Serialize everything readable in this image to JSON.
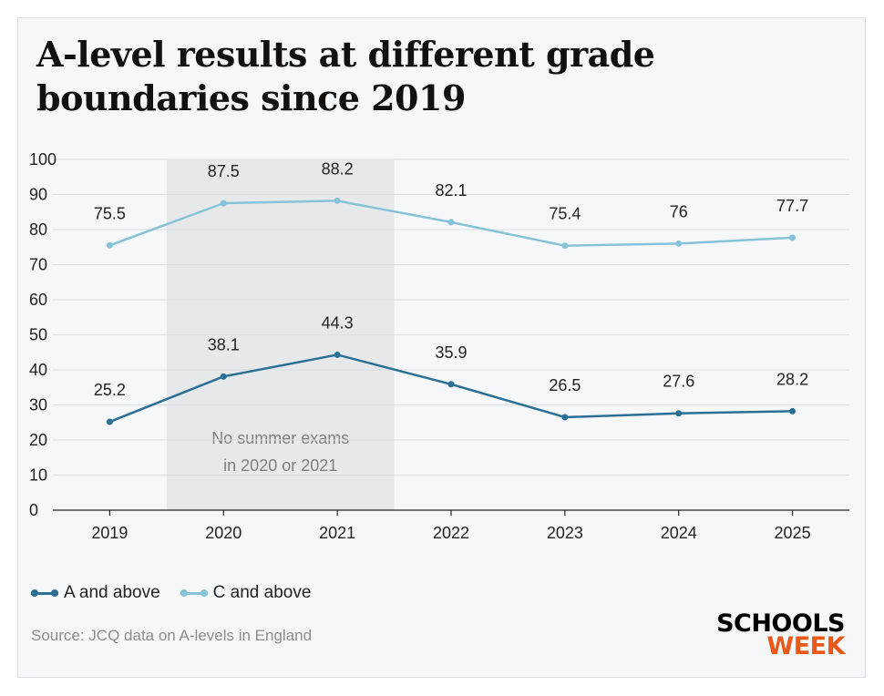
{
  "title": "A-level results at different grade boundaries since 2019",
  "chart_data": {
    "type": "line",
    "title": "A-level results at different grade boundaries since 2019",
    "xlabel": "",
    "ylabel": "",
    "categories": [
      "2019",
      "2020",
      "2021",
      "2022",
      "2023",
      "2024",
      "2025"
    ],
    "ylim": [
      0,
      100
    ],
    "yticks": [
      0,
      10,
      20,
      30,
      40,
      50,
      60,
      70,
      80,
      90,
      100
    ],
    "grid": true,
    "series": [
      {
        "name": "A and above",
        "values": [
          25.2,
          38.1,
          44.3,
          35.9,
          26.5,
          27.6,
          28.2
        ],
        "labels": [
          "25.2",
          "38.1",
          "44.3",
          "35.9",
          "26.5",
          "27.6",
          "28.2"
        ],
        "color": "#2b6f95"
      },
      {
        "name": "C and above",
        "values": [
          75.5,
          87.5,
          88.2,
          82.1,
          75.4,
          76,
          77.7
        ],
        "labels": [
          "75.5",
          "87.5",
          "88.2",
          "82.1",
          "75.4",
          "76",
          "77.7"
        ],
        "color": "#86c3d9"
      }
    ],
    "shaded_region": {
      "from": "2020",
      "to": "2021",
      "label_lines": [
        "No summer exams",
        "in 2020 or 2021"
      ],
      "color": "#e6e8ea"
    },
    "legend_position": "bottom-left"
  },
  "source": "Source: JCQ data on A-levels in England",
  "logo": {
    "line1": "SCHOOLS",
    "line2": "WEEK"
  },
  "colors": {
    "accent": "#e8591a",
    "background": "#f5f7f9"
  }
}
